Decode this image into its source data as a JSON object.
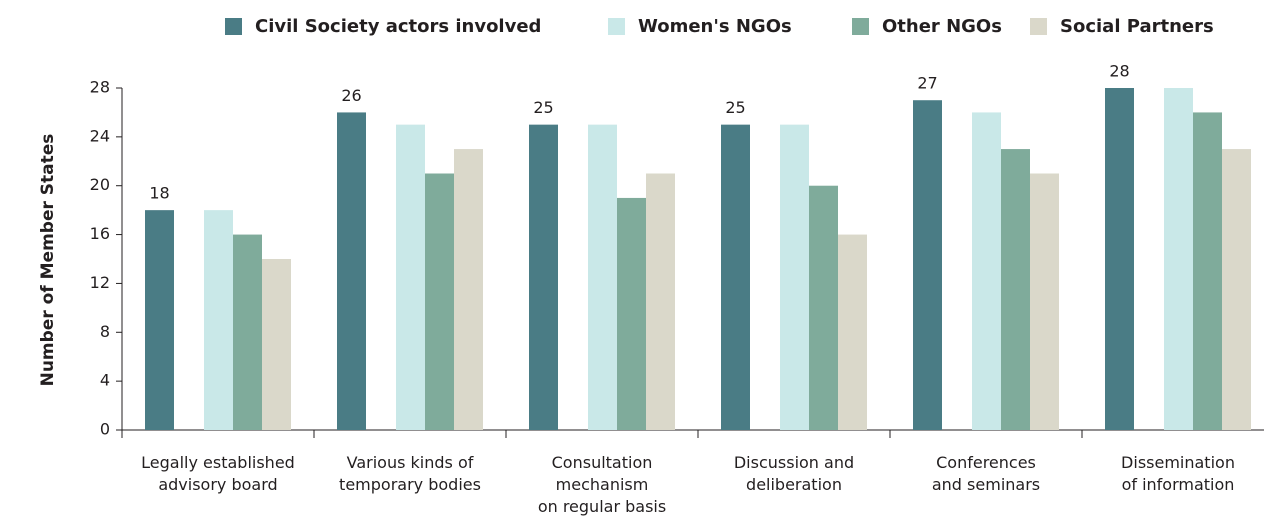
{
  "chart_data": {
    "type": "bar",
    "y_axis_label": "Number of Member States",
    "categories": [
      "Legally established\nadvisory board",
      "Various kinds of\ntemporary bodies",
      "Consultation\nmechanism\non regular basis",
      "Discussion and\ndeliberation",
      "Conferences\nand seminars",
      "Dissemination\nof information"
    ],
    "series": [
      {
        "name": "Civil Society actors involved",
        "color": "#4a7c85",
        "values": [
          18,
          26,
          25,
          25,
          27,
          28
        ],
        "show_labels": true
      },
      {
        "name": "Women's NGOs",
        "color": "#c9e8e8",
        "values": [
          18,
          25,
          25,
          25,
          26,
          28
        ]
      },
      {
        "name": "Other NGOs",
        "color": "#7fab9b",
        "values": [
          16,
          21,
          19,
          20,
          23,
          26
        ]
      },
      {
        "name": "Social Partners",
        "color": "#dad8ca",
        "values": [
          14,
          23,
          21,
          16,
          21,
          23
        ]
      }
    ],
    "ylim": [
      0,
      28
    ],
    "yticks": [
      0,
      4,
      8,
      12,
      16,
      20,
      24,
      28
    ],
    "legend": "top"
  }
}
